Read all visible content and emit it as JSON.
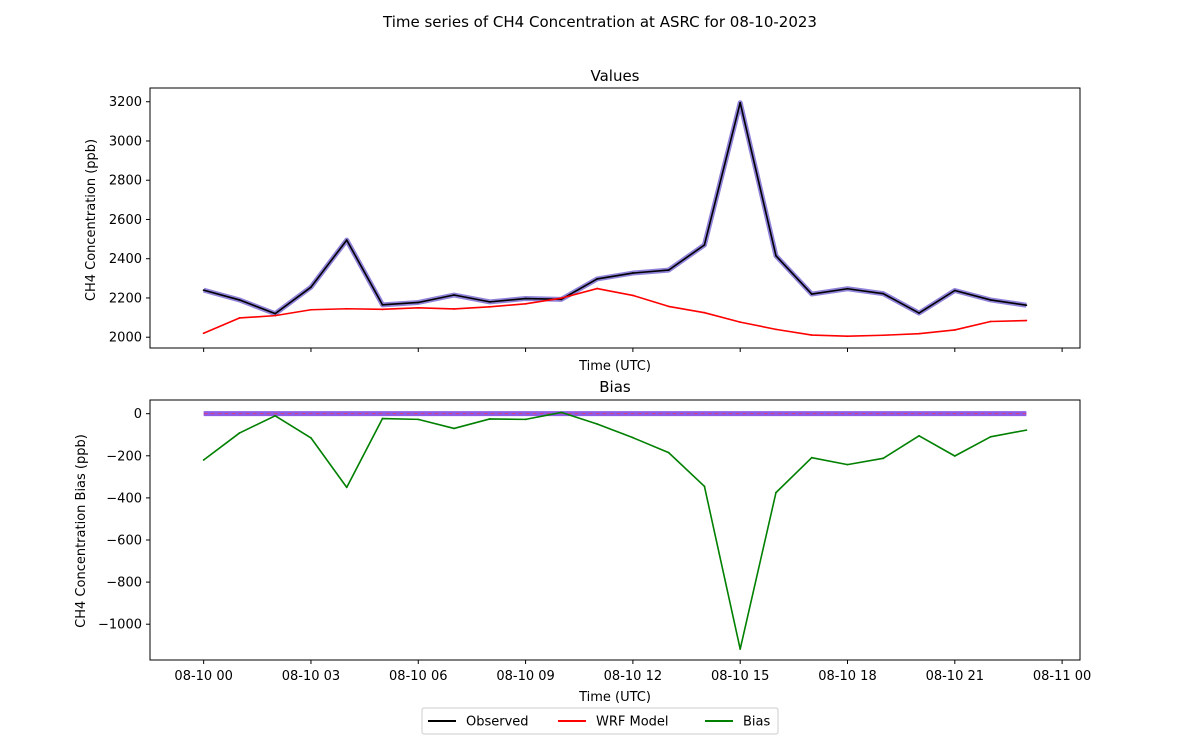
{
  "figure_title": "Time series of CH4 Concentration at ASRC for 08-10-2023",
  "colors": {
    "observed": "#000000",
    "observed_band": "#6a5acd",
    "model": "#ff0000",
    "bias": "#008000",
    "zero_band": "#7b3fe4"
  },
  "chart_data": [
    {
      "type": "line",
      "title": "Values",
      "xlabel": "Time (UTC)",
      "ylabel": "CH4 Concentration (ppb)",
      "x": [
        0,
        1,
        2,
        3,
        4,
        5,
        6,
        7,
        8,
        9,
        10,
        11,
        12,
        13,
        14,
        15,
        16,
        17,
        18,
        19,
        20,
        21,
        22,
        23
      ],
      "x_unit": "hours since 08-10 00",
      "xlim": [
        -1.5,
        24.5
      ],
      "ylim": [
        1945,
        3270
      ],
      "yticks": [
        2000,
        2200,
        2400,
        2600,
        2800,
        3000,
        3200
      ],
      "ytick_labels": [
        "2000",
        "2200",
        "2400",
        "2600",
        "2800",
        "3000",
        "3200"
      ],
      "xticks": [
        0,
        3,
        6,
        9,
        12,
        15,
        18,
        21,
        24
      ],
      "xtick_labels": [
        "08-10 00",
        "08-10 03",
        "08-10 06",
        "08-10 09",
        "08-10 12",
        "08-10 15",
        "08-10 18",
        "08-10 21",
        "08-11 00"
      ],
      "show_xtick_labels": false,
      "grid": false,
      "series": [
        {
          "name": "Observed",
          "key": "observed",
          "band": true,
          "values": [
            2240,
            2190,
            2120,
            2255,
            2495,
            2165,
            2177,
            2215,
            2180,
            2197,
            2193,
            2297,
            2327,
            2342,
            2470,
            3195,
            2415,
            2220,
            2247,
            2222,
            2123,
            2238,
            2190,
            2163
          ]
        },
        {
          "name": "WRF Model",
          "key": "model",
          "values": [
            2020,
            2098,
            2110,
            2140,
            2145,
            2142,
            2150,
            2144,
            2155,
            2170,
            2199,
            2248,
            2213,
            2157,
            2125,
            2077,
            2040,
            2011,
            2005,
            2010,
            2018,
            2037,
            2080,
            2085
          ]
        }
      ]
    },
    {
      "type": "line",
      "title": "Bias",
      "xlabel": "Time (UTC)",
      "ylabel": "CH4 Concentration Bias (ppb)",
      "x": [
        0,
        1,
        2,
        3,
        4,
        5,
        6,
        7,
        8,
        9,
        10,
        11,
        12,
        13,
        14,
        15,
        16,
        17,
        18,
        19,
        20,
        21,
        22,
        23
      ],
      "x_unit": "hours since 08-10 00",
      "xlim": [
        -1.5,
        24.5
      ],
      "ylim": [
        -1170,
        65
      ],
      "yticks": [
        -1000,
        -800,
        -600,
        -400,
        -200,
        0
      ],
      "ytick_labels": [
        "−1000",
        "−800",
        "−600",
        "−400",
        "−200",
        "0"
      ],
      "xticks": [
        0,
        3,
        6,
        9,
        12,
        15,
        18,
        21,
        24
      ],
      "xtick_labels": [
        "08-10 00",
        "08-10 03",
        "08-10 06",
        "08-10 09",
        "08-10 12",
        "08-10 15",
        "08-10 18",
        "08-10 21",
        "08-11 00"
      ],
      "show_xtick_labels": true,
      "grid": false,
      "zero_line": true,
      "series": [
        {
          "name": "Bias",
          "key": "bias",
          "values": [
            -220,
            -92,
            -10,
            -115,
            -350,
            -23,
            -27,
            -70,
            -25,
            -27,
            6,
            -49,
            -114,
            -185,
            -345,
            -1118,
            -375,
            -209,
            -242,
            -212,
            -105,
            -201,
            -110,
            -78
          ]
        }
      ]
    }
  ],
  "legend": {
    "position": "bottom-center",
    "entries": [
      {
        "label": "Observed",
        "key": "observed"
      },
      {
        "label": "WRF Model",
        "key": "model"
      },
      {
        "label": "Bias",
        "key": "bias"
      }
    ]
  }
}
